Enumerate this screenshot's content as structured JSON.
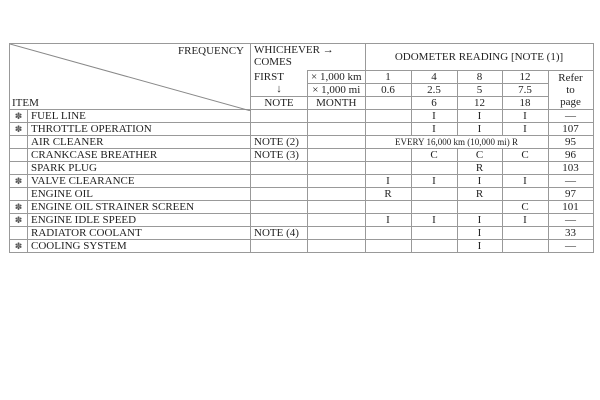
{
  "header": {
    "frequency": "FREQUENCY",
    "item": "ITEM",
    "whichever_line1": "WHICHEVER →",
    "whichever_line2": "COMES",
    "first": "FIRST",
    "arrow_down": "↓",
    "note": "NOTE",
    "month": "MONTH",
    "odometer": "ODOMETER READING [NOTE (1)]",
    "km_label": "× 1,000 km",
    "mi_label": "× 1,000 mi",
    "km": [
      "1",
      "4",
      "8",
      "12"
    ],
    "mi": [
      "0.6",
      "2.5",
      "5",
      "7.5"
    ],
    "months": [
      "",
      "6",
      "12",
      "18"
    ],
    "refer_line1": "Refer",
    "refer_line2": "to",
    "refer_line3": "page"
  },
  "rows": [
    {
      "star": "✽",
      "item": "FUEL LINE",
      "note": "",
      "c": [
        "",
        "I",
        "I",
        "I"
      ],
      "page": "—"
    },
    {
      "star": "✽",
      "item": "THROTTLE OPERATION",
      "note": "",
      "c": [
        "",
        "I",
        "I",
        "I"
      ],
      "page": "107"
    },
    {
      "star": "",
      "item": "AIR CLEANER",
      "note": "NOTE (2)",
      "every": "EVERY 16,000 km (10,000 mi) R",
      "page": "95"
    },
    {
      "star": "",
      "item": "CRANKCASE BREATHER",
      "note": "NOTE (3)",
      "c": [
        "",
        "C",
        "C",
        "C"
      ],
      "page": "96"
    },
    {
      "star": "",
      "item": "SPARK PLUG",
      "note": "",
      "c": [
        "",
        "",
        "R",
        ""
      ],
      "page": "103"
    },
    {
      "star": "✽",
      "item": "VALVE CLEARANCE",
      "note": "",
      "c": [
        "I",
        "I",
        "I",
        "I"
      ],
      "page": "—"
    },
    {
      "star": "",
      "item": "ENGINE OIL",
      "note": "",
      "c": [
        "R",
        "",
        "R",
        ""
      ],
      "page": "97"
    },
    {
      "star": "✽",
      "item": "ENGINE OIL STRAINER SCREEN",
      "note": "",
      "c": [
        "",
        "",
        "",
        "C"
      ],
      "page": "101"
    },
    {
      "star": "✽",
      "item": "ENGINE IDLE SPEED",
      "note": "",
      "c": [
        "I",
        "I",
        "I",
        "I"
      ],
      "page": "—"
    },
    {
      "star": "",
      "item": "RADIATOR COOLANT",
      "note": "NOTE (4)",
      "c": [
        "",
        "",
        "I",
        ""
      ],
      "page": "33"
    },
    {
      "star": "✽",
      "item": "COOLING SYSTEM",
      "note": "",
      "c": [
        "",
        "",
        "I",
        ""
      ],
      "page": "—"
    }
  ]
}
